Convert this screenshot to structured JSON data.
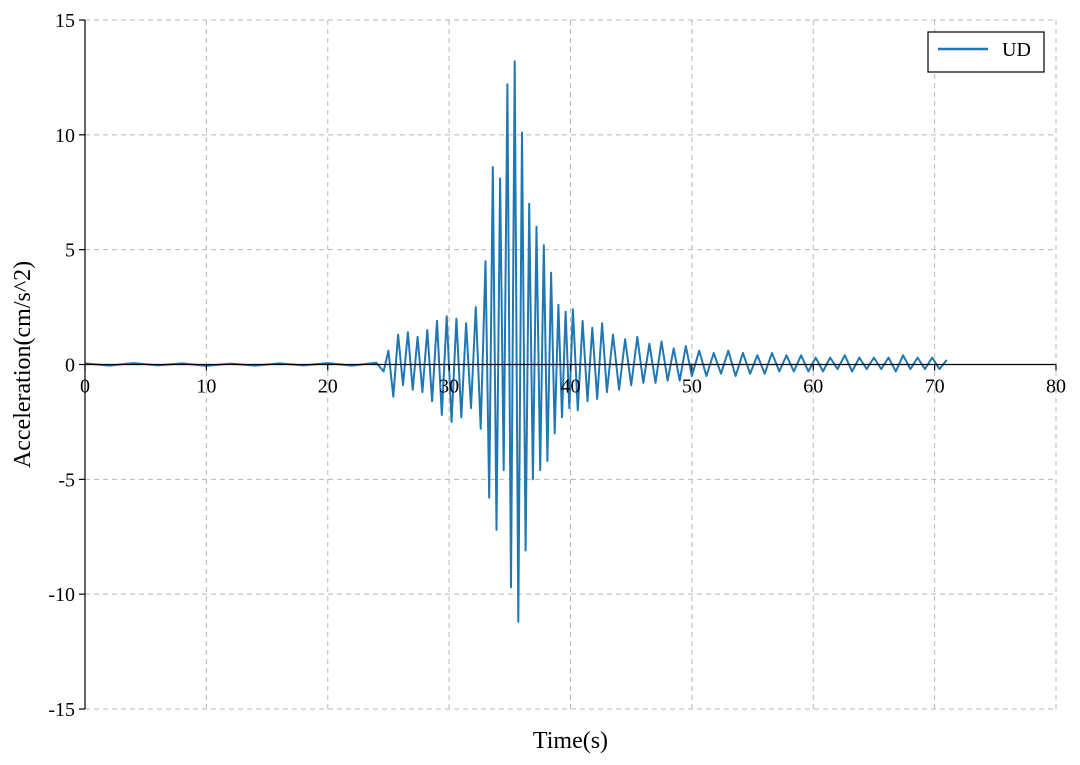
{
  "chart_data": {
    "type": "line",
    "title": "",
    "xlabel": "Time(s)",
    "ylabel": "Acceleration(cm/s^2)",
    "xlim": [
      0,
      80
    ],
    "ylim": [
      -15,
      15
    ],
    "xticks": [
      0,
      10,
      20,
      30,
      40,
      50,
      60,
      70,
      80
    ],
    "yticks": [
      -15,
      -10,
      -5,
      0,
      5,
      10,
      15
    ],
    "xtick_labels": [
      "0",
      "10",
      "20",
      "30",
      "40",
      "50",
      "60",
      "70",
      "80"
    ],
    "ytick_labels": [
      "-15",
      "-10",
      "-5",
      "0",
      "5",
      "10",
      "15"
    ],
    "grid": true,
    "legend_position": "top-right",
    "series": [
      {
        "name": "UD",
        "color": "#1f77b4",
        "x": [
          0,
          2,
          4,
          6,
          8,
          10,
          12,
          14,
          16,
          18,
          20,
          22,
          24,
          24.6,
          25.0,
          25.4,
          25.8,
          26.2,
          26.6,
          27.0,
          27.4,
          27.8,
          28.2,
          28.6,
          29.0,
          29.4,
          29.8,
          30.2,
          30.6,
          31.0,
          31.4,
          31.8,
          32.2,
          32.6,
          33.0,
          33.3,
          33.6,
          33.9,
          34.2,
          34.5,
          34.8,
          35.1,
          35.4,
          35.7,
          36.0,
          36.3,
          36.6,
          36.9,
          37.2,
          37.5,
          37.8,
          38.1,
          38.4,
          38.7,
          39.0,
          39.3,
          39.6,
          39.9,
          40.2,
          40.6,
          41.0,
          41.4,
          41.8,
          42.2,
          42.6,
          43.0,
          43.5,
          44.0,
          44.5,
          45.0,
          45.5,
          46.0,
          46.5,
          47.0,
          47.5,
          48.0,
          48.5,
          49.0,
          49.5,
          50.0,
          50.6,
          51.2,
          51.8,
          52.4,
          53.0,
          53.6,
          54.2,
          54.8,
          55.4,
          56.0,
          56.6,
          57.2,
          57.8,
          58.4,
          59.0,
          59.6,
          60.2,
          60.8,
          61.4,
          62.0,
          62.6,
          63.2,
          63.8,
          64.4,
          65.0,
          65.6,
          66.2,
          66.8,
          67.4,
          68.0,
          68.6,
          69.2,
          69.8,
          70.4,
          71.0
        ],
        "y": [
          0.05,
          -0.05,
          0.06,
          -0.04,
          0.05,
          -0.06,
          0.04,
          -0.05,
          0.05,
          -0.04,
          0.06,
          -0.05,
          0.08,
          -0.3,
          0.6,
          -1.4,
          1.3,
          -0.9,
          1.4,
          -1.1,
          1.2,
          -1.2,
          1.5,
          -1.6,
          1.9,
          -2.2,
          2.1,
          -2.5,
          2.0,
          -2.3,
          1.8,
          -1.9,
          2.5,
          -2.8,
          4.5,
          -5.8,
          8.6,
          -7.2,
          8.1,
          -4.6,
          12.2,
          -9.7,
          13.2,
          -11.2,
          10.1,
          -8.1,
          7.0,
          -5.0,
          6.0,
          -4.6,
          5.2,
          -4.2,
          4.0,
          -3.0,
          2.6,
          -2.3,
          2.3,
          -1.9,
          2.4,
          -2.0,
          1.9,
          -1.6,
          1.6,
          -1.5,
          1.8,
          -1.2,
          1.3,
          -1.1,
          1.1,
          -0.9,
          1.2,
          -0.8,
          0.9,
          -0.8,
          1.0,
          -0.7,
          0.7,
          -0.7,
          0.8,
          -0.5,
          0.6,
          -0.5,
          0.5,
          -0.4,
          0.6,
          -0.5,
          0.5,
          -0.4,
          0.4,
          -0.4,
          0.5,
          -0.3,
          0.4,
          -0.3,
          0.4,
          -0.3,
          0.3,
          -0.3,
          0.3,
          -0.2,
          0.4,
          -0.3,
          0.3,
          -0.2,
          0.3,
          -0.2,
          0.3,
          -0.3,
          0.4,
          -0.2,
          0.3,
          -0.2,
          0.3,
          -0.2,
          0.2
        ]
      }
    ]
  }
}
